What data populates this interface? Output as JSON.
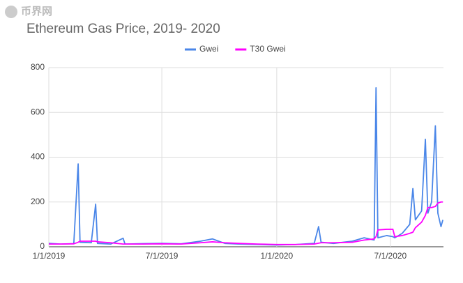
{
  "watermark": "币界网",
  "chart_data": {
    "type": "line",
    "title": "Ethereum Gas Price, 2019- 2020",
    "x": [
      "1/1/2019",
      "1/20/2019",
      "2/10/2019",
      "2/17/2019",
      "2/20/2019",
      "3/10/2019",
      "3/17/2019",
      "3/20/2019",
      "4/10/2019",
      "4/30/2019",
      "5/3/2019",
      "6/1/2019",
      "7/1/2019",
      "8/1/2019",
      "9/1/2019",
      "9/20/2019",
      "10/10/2019",
      "11/1/2019",
      "12/1/2019",
      "1/1/2020",
      "2/1/2020",
      "3/1/2020",
      "3/8/2020",
      "3/12/2020",
      "4/1/2020",
      "5/1/2020",
      "5/20/2020",
      "6/5/2020",
      "6/8/2020",
      "6/11/2020",
      "6/25/2020",
      "7/5/2020",
      "7/8/2020",
      "7/20/2020",
      "8/1/2020",
      "8/6/2020",
      "8/10/2020",
      "8/20/2020",
      "8/26/2020",
      "8/30/2020",
      "9/5/2020",
      "9/11/2020",
      "9/15/2020",
      "9/20/2020",
      "9/23/2020"
    ],
    "series": [
      {
        "name": "Gwei",
        "color": "#4a86e8",
        "values": [
          15,
          12,
          14,
          370,
          20,
          18,
          190,
          15,
          12,
          38,
          12,
          14,
          15,
          13,
          25,
          35,
          15,
          12,
          10,
          8,
          10,
          15,
          90,
          20,
          15,
          25,
          40,
          30,
          710,
          40,
          50,
          45,
          40,
          60,
          100,
          260,
          120,
          160,
          480,
          150,
          200,
          540,
          150,
          90,
          120
        ]
      },
      {
        "name": "T30 Gwei",
        "color": "#ff00ff",
        "values": [
          12,
          12,
          13,
          20,
          25,
          25,
          25,
          22,
          18,
          12,
          12,
          12,
          13,
          12,
          18,
          22,
          18,
          15,
          12,
          10,
          10,
          12,
          16,
          18,
          18,
          20,
          30,
          35,
          45,
          75,
          78,
          78,
          45,
          50,
          60,
          65,
          85,
          110,
          140,
          175,
          175,
          180,
          195,
          200,
          200
        ]
      }
    ],
    "xlim": [
      "1/1/2019",
      "9/24/2020"
    ],
    "xticks": [
      "1/1/2019",
      "7/1/2019",
      "1/1/2020",
      "7/1/2020"
    ],
    "ylim": [
      0,
      800
    ],
    "yticks": [
      0,
      200,
      400,
      600,
      800
    ],
    "grid": true,
    "legend": "top"
  }
}
